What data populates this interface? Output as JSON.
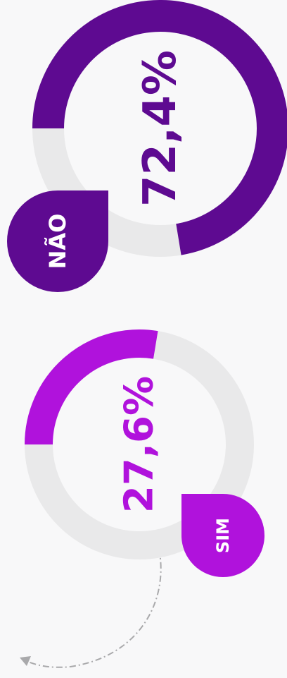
{
  "chart_data": [
    {
      "type": "donut",
      "categories": [
        "NÃO"
      ],
      "values": [
        72.4
      ],
      "value_labels": [
        "72,4%"
      ],
      "color": "#5e0a91",
      "track_color": "#e9e9ea"
    },
    {
      "type": "donut",
      "categories": [
        "SIM"
      ],
      "values": [
        27.6
      ],
      "value_labels": [
        "27,6%"
      ],
      "color": "#b012dc",
      "track_color": "#e9e9ea"
    }
  ]
}
